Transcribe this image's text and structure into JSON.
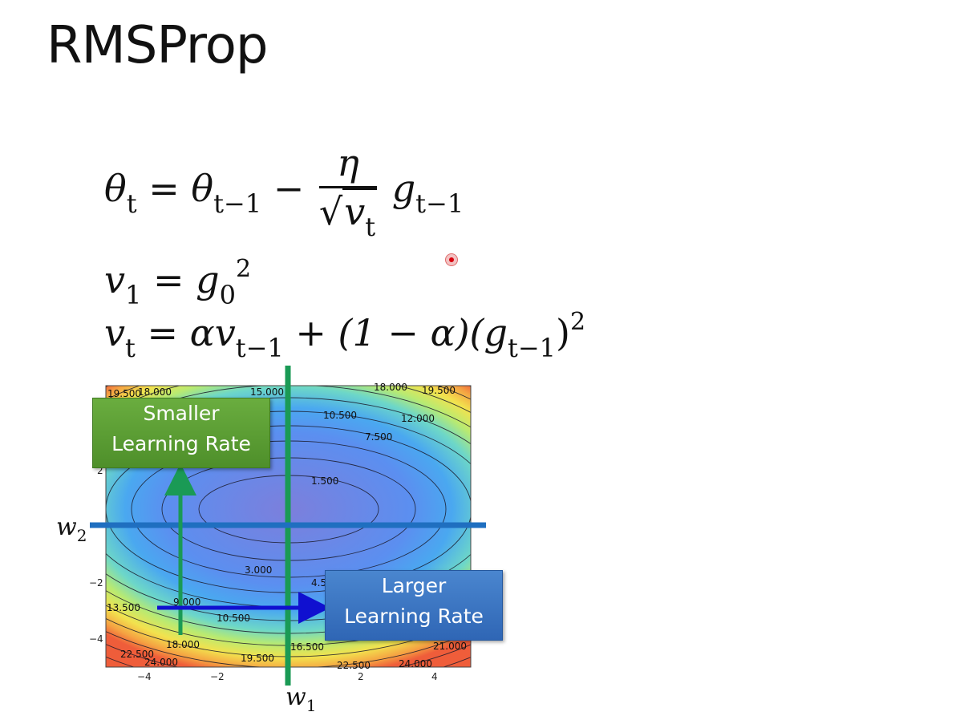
{
  "slide": {
    "title": "RMSProp"
  },
  "equations": {
    "eq1": {
      "lhs": "θ",
      "lhs_sub": "t",
      "eq": "=",
      "theta": "θ",
      "theta_sub": "t−1",
      "minus": "−",
      "numerator": "η",
      "radical": "√",
      "den_var": "v",
      "den_sub": "t",
      "g": "g",
      "g_sub": "t−1"
    },
    "eq2": {
      "lhs": "v",
      "lhs_sub": "1",
      "eq": "=",
      "g": "g",
      "g_sub": "0",
      "g_sup": "2"
    },
    "eq3": {
      "lhs": "v",
      "lhs_sub": "t",
      "eq": "=",
      "term1": "αv",
      "term1_sub": "t−1",
      "plus": "+",
      "paren": "(1 − α)(",
      "g": "g",
      "g_sub": "t−1",
      "close": ")",
      "sup": "2"
    }
  },
  "contour_plot": {
    "x_ticks": [
      "−4",
      "−2",
      "2",
      "4"
    ],
    "y_ticks": [
      "2",
      "−2",
      "−4"
    ],
    "contour_labels": [
      "19.500",
      "18.000",
      "15.000",
      "10.500",
      "12.000",
      "7.500",
      "1.500",
      "3.000",
      "4.5",
      "9.000",
      "13.500",
      "10.500",
      "18.000",
      "16.500",
      "21.000",
      "22.500",
      "24.000",
      "19.500",
      "22.500",
      "24.000",
      "19.500",
      "18.000"
    ],
    "colors": {
      "center": "#7c7fdc",
      "vertical_line": "#1a9a55",
      "horizontal_line": "#1f6fc0",
      "green_arrow": "#1a9a55",
      "blue_arrow": "#1010d0"
    }
  },
  "annotations": {
    "smaller_lr_line1": "Smaller",
    "smaller_lr_line2": "Learning Rate",
    "larger_lr_line1": "Larger",
    "larger_lr_line2": "Learning Rate",
    "w1": "w",
    "w1_sub": "1",
    "w2": "w",
    "w2_sub": "2"
  }
}
